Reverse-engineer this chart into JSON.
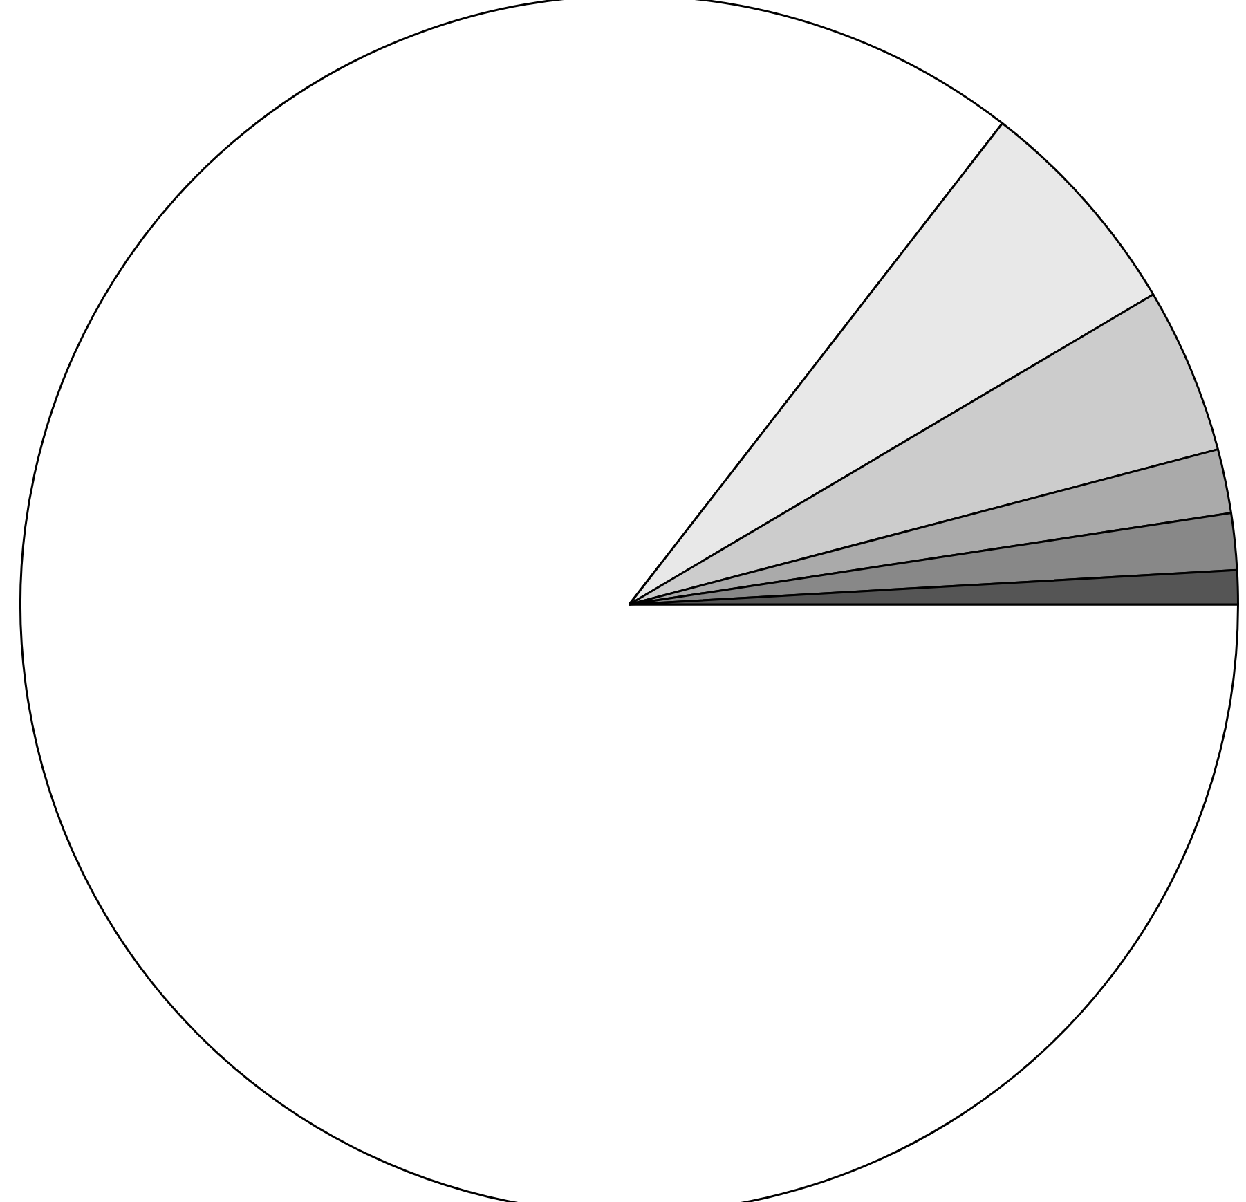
{
  "chart_data": {
    "type": "pie",
    "categories": [
      null,
      null,
      null,
      null,
      null,
      null
    ],
    "values": [
      85.5,
      6.0,
      4.4,
      1.7,
      1.5,
      0.9
    ],
    "colors": [
      "#ffffff",
      "#e8e8e8",
      "#cccccc",
      "#aaaaaa",
      "#888888",
      "#555555"
    ],
    "legend": false
  }
}
